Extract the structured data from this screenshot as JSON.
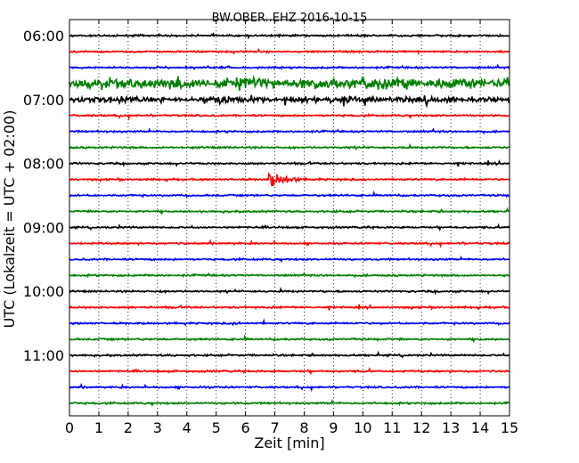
{
  "chart_data": {
    "type": "line",
    "title": "BW.OBER..EHZ 2016-10-15",
    "xlabel": "Zeit  [min]",
    "ylabel": "UTC (Lokalzeit = UTC + 02:00)",
    "xlim": [
      0,
      15
    ],
    "x_ticks": [
      "0",
      "1",
      "2",
      "3",
      "4",
      "5",
      "6",
      "7",
      "8",
      "9",
      "10",
      "11",
      "12",
      "13",
      "14",
      "15"
    ],
    "y_ticks": [
      "06:00",
      "07:00",
      "08:00",
      "09:00",
      "10:00",
      "11:00"
    ],
    "grid": "vertical dotted at each minute",
    "row_interval_minutes": 15,
    "row_start_times": [
      "06:00",
      "06:15",
      "06:30",
      "06:45",
      "07:00",
      "07:15",
      "07:30",
      "07:45",
      "08:00",
      "08:15",
      "08:30",
      "08:45",
      "09:00",
      "09:15",
      "09:30",
      "09:45",
      "10:00",
      "10:15",
      "10:30",
      "10:45",
      "11:00",
      "11:15",
      "11:30",
      "11:45"
    ],
    "colors": [
      "#000000",
      "#ff0000",
      "#0000ff",
      "#008000"
    ],
    "events": [
      {
        "row_start": "06:45",
        "description": "strong broadband noise",
        "amplitude": "high"
      },
      {
        "row_start": "07:00",
        "description": "elevated noise with bursts",
        "amplitude": "medium"
      },
      {
        "row_start": "08:15",
        "description": "local event onset",
        "x_minute": 6.8,
        "amplitude": "high"
      }
    ]
  }
}
